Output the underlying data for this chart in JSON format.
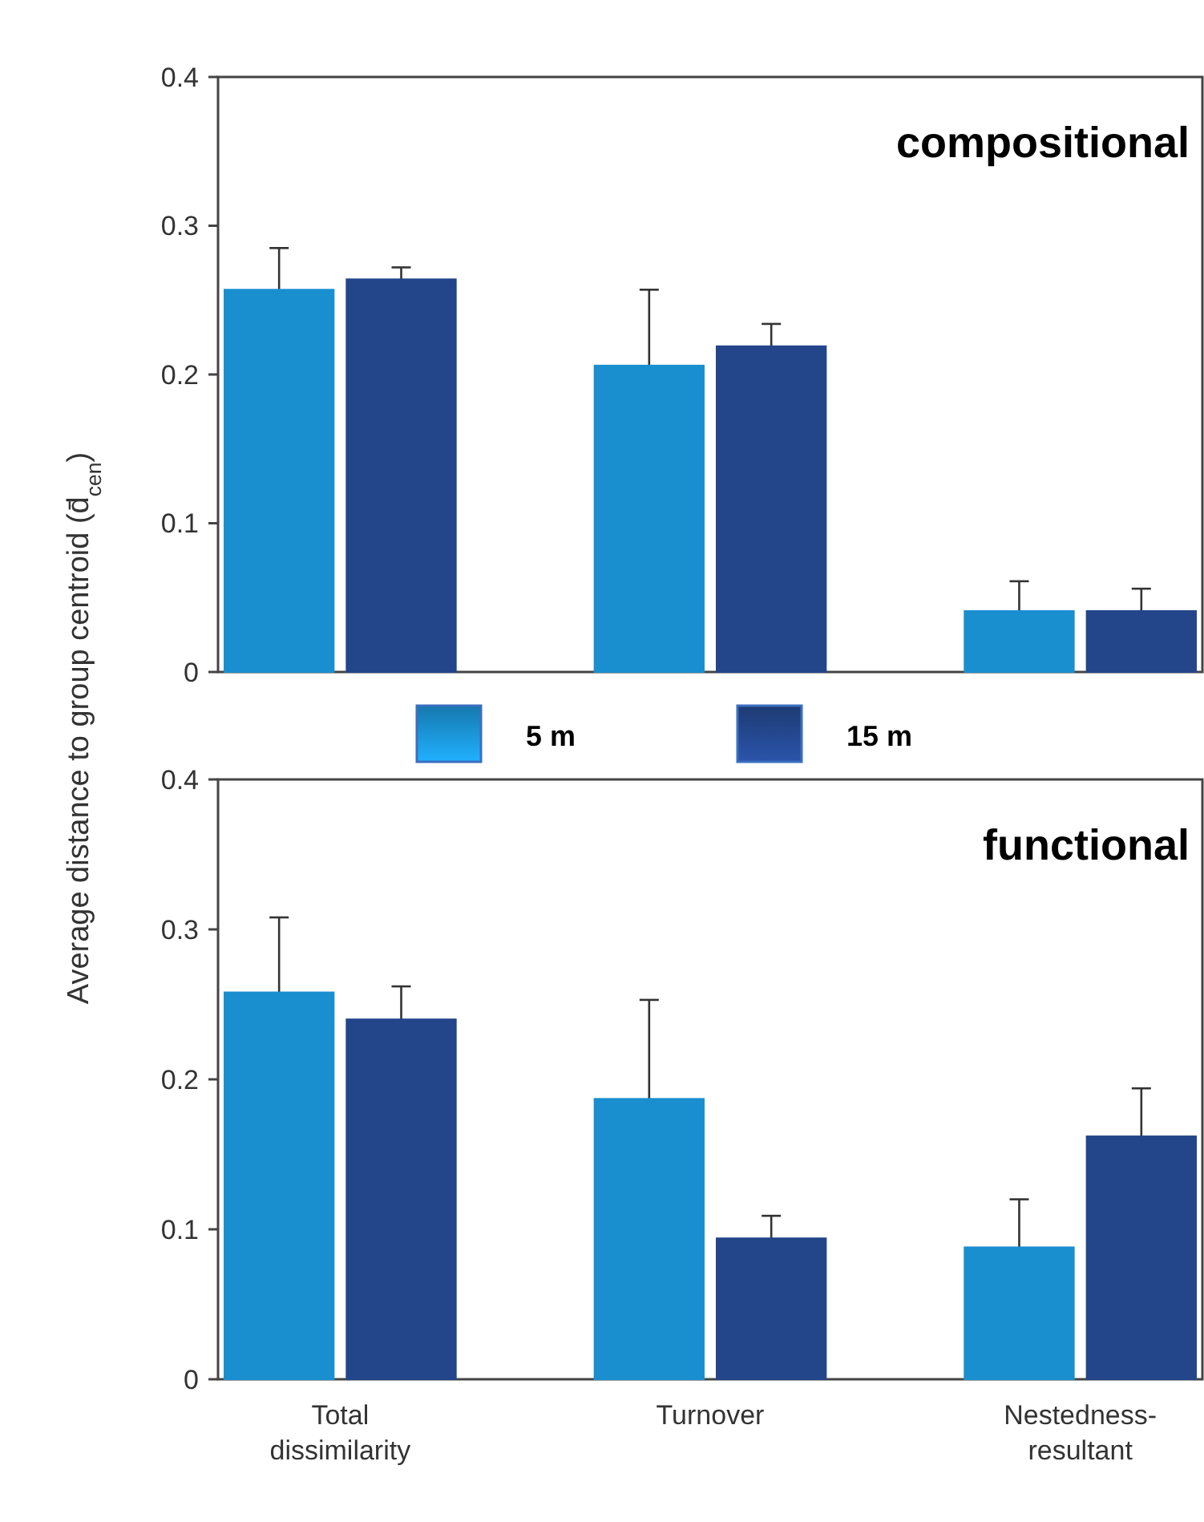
{
  "chart_data": [
    {
      "type": "bar",
      "title": "compositional",
      "ylabel": "Average distance to group centroid (d̄$_{cen}$)",
      "categories": [
        null,
        null,
        null
      ],
      "tick_labels": "y",
      "ylim": [
        0,
        0.4
      ],
      "yticks": [
        {
          "value": 0,
          "label": "0"
        },
        0.1,
        0.2,
        0.3,
        0.4
      ],
      "legend": "bottom",
      "series": [
        {
          "name": "5 m",
          "color": "#1a8fd0",
          "values": [
            0.257,
            0.206,
            0.041
          ],
          "errors": [
            [
              0.257,
              0.285
            ],
            [
              0.206,
              0.257
            ],
            [
              0.041,
              0.061
            ]
          ]
        },
        {
          "name": "15 m",
          "color": "#23458a",
          "values": [
            0.264,
            0.219,
            0.041
          ],
          "errors": [
            [
              0.264,
              0.272
            ],
            [
              0.219,
              0.234
            ],
            [
              0.041,
              0.056
            ]
          ]
        }
      ]
    },
    {
      "type": "bar",
      "title": "functional",
      "categories": [
        "Total dissimilarity",
        "Turnover",
        "Nestedness-resultant"
      ],
      "ylim": [
        0,
        0.4
      ],
      "yticks": [
        {
          "value": 0,
          "label": "0"
        },
        0.1,
        0.2,
        0.3,
        0.4
      ],
      "series": [
        {
          "color": "#1a8fd0",
          "values": [
            0.258,
            0.187,
            0.088
          ],
          "errors": [
            [
              0.258,
              0.308
            ],
            [
              0.187,
              0.253
            ],
            [
              0.088,
              0.12
            ]
          ]
        },
        {
          "color": "#23458a",
          "values": [
            0.24,
            0.094,
            0.162
          ],
          "errors": [
            [
              0.24,
              0.262
            ],
            [
              0.094,
              0.109
            ],
            [
              0.162,
              0.194
            ]
          ]
        }
      ]
    }
  ]
}
